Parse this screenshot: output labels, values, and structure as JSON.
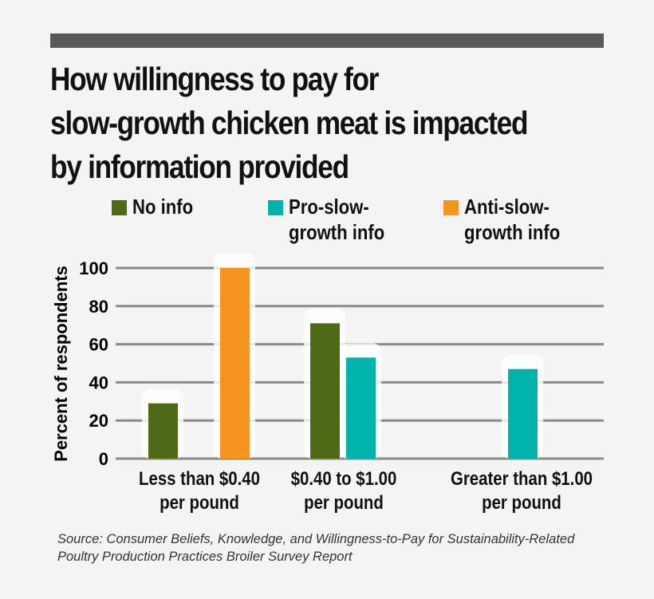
{
  "chart_data": {
    "type": "bar",
    "title": "How willingness to pay for\nslow-growth chicken meat is impacted\nby information provided",
    "ylabel": "Percent of respondents",
    "xlabel": "",
    "ylim": [
      0,
      100
    ],
    "yticks": [
      "0",
      "20",
      "40",
      "60",
      "80",
      "100"
    ],
    "grid": true,
    "legend_placement": "top",
    "categories": [
      "Less than $0.40\nper pound",
      "$0.40 to $1.00\nper pound",
      "Greater than $1.00\nper pound"
    ],
    "series": [
      {
        "name": "No info",
        "color": "#4e6a17",
        "values": [
          29,
          71,
          null
        ]
      },
      {
        "name": "Pro-slow-\ngrowth info",
        "color": "#00b4ab",
        "values": [
          null,
          53,
          47
        ]
      },
      {
        "name": "Anti-slow-\ngrowth info",
        "color": "#f5951f",
        "values": [
          100,
          null,
          null
        ]
      }
    ],
    "source": "Source: Consumer Beliefs, Knowledge, and Willingness-to-Pay for Sustainability-Related\nPoultry Production Practices Broiler Survey Report"
  }
}
